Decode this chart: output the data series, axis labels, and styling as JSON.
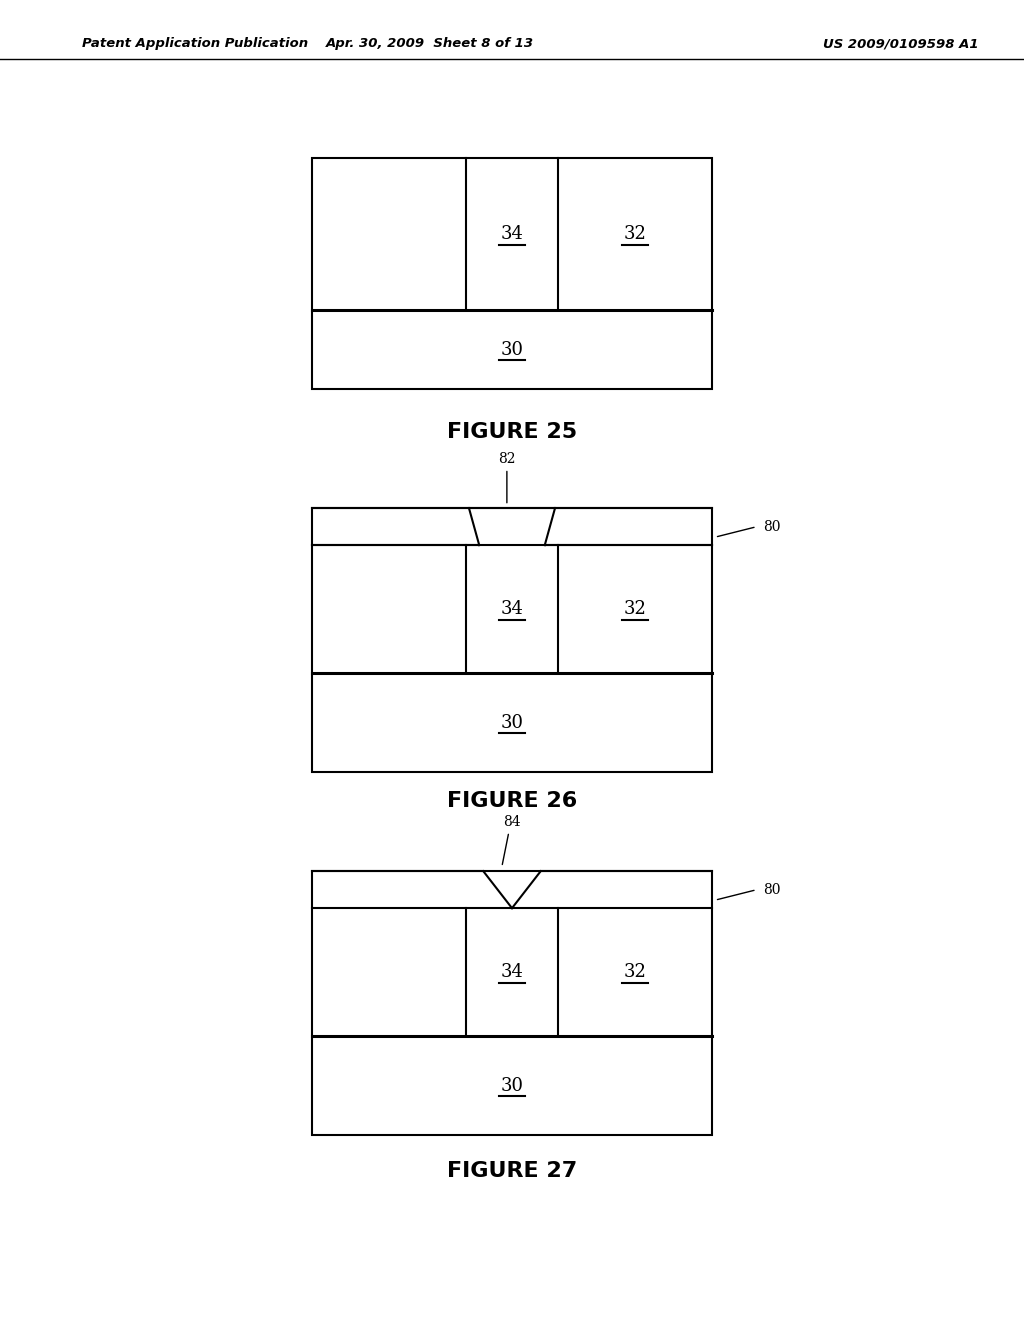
{
  "background_color": "#ffffff",
  "header_left": "Patent Application Publication",
  "header_mid": "Apr. 30, 2009  Sheet 8 of 13",
  "header_right": "US 2009/0109598 A1",
  "fig25_caption": "FIGURE 25",
  "fig26_caption": "FIGURE 26",
  "fig27_caption": "FIGURE 27",
  "label_34": "34",
  "label_32": "32",
  "label_30": "30",
  "label_82": "82",
  "label_84": "84",
  "label_80": "80"
}
